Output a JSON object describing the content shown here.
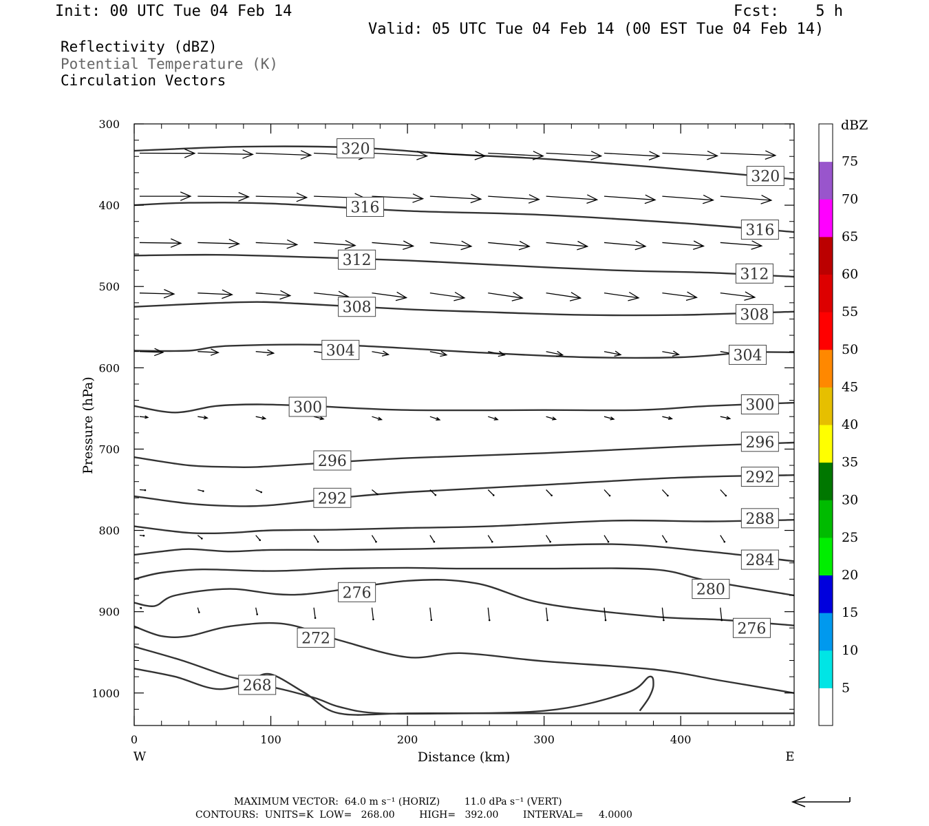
{
  "header": {
    "init": "Init: 00 UTC Tue 04 Feb 14",
    "fcst": "Fcst:    5 h",
    "valid": "Valid: 05 UTC Tue 04 Feb 14 (00 EST Tue 04 Feb 14)",
    "fields": [
      "Reflectivity (dBZ)",
      "Potential Temperature (K)",
      "Circulation Vectors"
    ]
  },
  "footer": {
    "line1": "MAXIMUM VECTOR:  64.0 m s⁻¹ (HORIZ)        11.0 dPa s⁻¹ (VERT)",
    "line2": "CONTOURS:  UNITS=K  LOW=   268.00        HIGH=   392.00        INTERVAL=     4.0000"
  },
  "colors": {
    "contour": "#333333",
    "colorbar": [
      "#ffffff",
      "#00e5e5",
      "#0099ee",
      "#0000dd",
      "#00ee00",
      "#00bb00",
      "#007700",
      "#ffff00",
      "#e6bf00",
      "#ff8800",
      "#ff0000",
      "#dd0000",
      "#bb0000",
      "#ff00ff",
      "#9955cc",
      "#ffffff"
    ]
  },
  "chart_data": {
    "type": "cross-section contour",
    "xlabel": "Distance (km)",
    "ylabel": "Pressure (hPa)",
    "xlim": [
      0,
      483
    ],
    "ylim": [
      300,
      1040
    ],
    "yscale": "linear, inverted",
    "x_ticks": [
      0,
      100,
      200,
      300,
      400
    ],
    "y_ticks": [
      300,
      400,
      500,
      600,
      700,
      800,
      900,
      1000
    ],
    "left_end_label": "W",
    "right_end_label": "E",
    "colorbar": {
      "title": "dBZ",
      "tick_labels": [
        "5",
        "10",
        "15",
        "20",
        "25",
        "30",
        "35",
        "40",
        "45",
        "50",
        "55",
        "60",
        "65",
        "70",
        "75"
      ]
    },
    "contours": [
      {
        "level": 320,
        "x": [
          0,
          80,
          160,
          230,
          300,
          380,
          483
        ],
        "p": [
          333,
          328,
          329,
          337,
          343,
          353,
          368
        ]
      },
      {
        "level": 316,
        "x": [
          0,
          40,
          100,
          200,
          300,
          400,
          483
        ],
        "p": [
          400,
          397,
          398,
          407,
          412,
          422,
          433
        ]
      },
      {
        "level": 312,
        "x": [
          0,
          60,
          130,
          200,
          260,
          350,
          420,
          483
        ],
        "p": [
          462,
          461,
          464,
          468,
          473,
          480,
          483,
          488
        ]
      },
      {
        "level": 308,
        "x": [
          0,
          50,
          90,
          120,
          200,
          250,
          330,
          400,
          483
        ],
        "p": [
          525,
          521,
          519,
          521,
          528,
          531,
          535,
          535,
          531
        ]
      },
      {
        "level": 304,
        "x": [
          0,
          40,
          70,
          150,
          250,
          330,
          400,
          450,
          483
        ],
        "p": [
          579,
          579,
          573,
          572,
          581,
          587,
          587,
          581,
          581
        ]
      },
      {
        "level": 300,
        "x": [
          0,
          30,
          60,
          90,
          130,
          200,
          300,
          370,
          420,
          483
        ],
        "p": [
          647,
          655,
          647,
          645,
          647,
          652,
          652,
          652,
          647,
          643
        ]
      },
      {
        "level": 296,
        "x": [
          0,
          40,
          70,
          90,
          130,
          200,
          300,
          400,
          483
        ],
        "p": [
          710,
          720,
          722,
          722,
          718,
          711,
          705,
          697,
          692
        ]
      },
      {
        "level": 292,
        "x": [
          0,
          40,
          70,
          100,
          150,
          200,
          300,
          400,
          483
        ],
        "p": [
          758,
          767,
          770,
          769,
          760,
          753,
          744,
          735,
          732
        ]
      },
      {
        "level": 288,
        "x": [
          0,
          40,
          70,
          100,
          150,
          200,
          260,
          350,
          420,
          483
        ],
        "p": [
          795,
          803,
          803,
          800,
          799,
          797,
          795,
          788,
          789,
          787
        ]
      },
      {
        "level": 284,
        "x": [
          0,
          20,
          40,
          70,
          100,
          150,
          200,
          260,
          350,
          420,
          483
        ],
        "p": [
          830,
          826,
          823,
          826,
          824,
          824,
          823,
          821,
          817,
          826,
          838
        ]
      },
      {
        "level": 280,
        "x": [
          0,
          20,
          50,
          100,
          150,
          200,
          240,
          300,
          380,
          420,
          483
        ],
        "p": [
          860,
          852,
          848,
          850,
          847,
          846,
          847,
          847,
          848,
          862,
          880
        ]
      },
      {
        "level": 276,
        "x": [
          0,
          15,
          30,
          70,
          120,
          200,
          250,
          300,
          380,
          430,
          483
        ],
        "p": [
          889,
          893,
          880,
          872,
          879,
          862,
          865,
          890,
          906,
          910,
          917
        ]
      },
      {
        "level": 272,
        "x": [
          0,
          20,
          40,
          70,
          110,
          150,
          200,
          240,
          300,
          380,
          430,
          483
        ],
        "p": [
          918,
          930,
          930,
          918,
          915,
          935,
          956,
          951,
          961,
          971,
          985,
          1000
        ]
      },
      {
        "level": 268,
        "x": [
          0,
          35,
          70,
          85,
          100,
          125,
          150,
          200,
          300,
          360,
          377,
          380,
          377,
          370
        ],
        "p": [
          943,
          960,
          980,
          983,
          977,
          1000,
          1025,
          1025,
          1022,
          1000,
          980,
          990,
          1005,
          1022
        ]
      },
      {
        "level": 268,
        "x": [
          0,
          30,
          60,
          90,
          130,
          150,
          180,
          250,
          330,
          400,
          483
        ],
        "p": [
          970,
          980,
          995,
          990,
          1005,
          1017,
          1025,
          1025,
          1025,
          1025,
          1025
        ]
      }
    ],
    "contour_labels": [
      {
        "text": "320",
        "x": 162,
        "p": 330
      },
      {
        "text": "320",
        "x": 462,
        "p": 364
      },
      {
        "text": "316",
        "x": 169,
        "p": 402
      },
      {
        "text": "316",
        "x": 458,
        "p": 430
      },
      {
        "text": "312",
        "x": 163,
        "p": 467
      },
      {
        "text": "312",
        "x": 454,
        "p": 484
      },
      {
        "text": "308",
        "x": 163,
        "p": 525
      },
      {
        "text": "308",
        "x": 454,
        "p": 534
      },
      {
        "text": "304",
        "x": 151,
        "p": 578
      },
      {
        "text": "304",
        "x": 449,
        "p": 584
      },
      {
        "text": "300",
        "x": 127,
        "p": 648
      },
      {
        "text": "300",
        "x": 458,
        "p": 645
      },
      {
        "text": "296",
        "x": 145,
        "p": 714
      },
      {
        "text": "296",
        "x": 458,
        "p": 691
      },
      {
        "text": "292",
        "x": 145,
        "p": 760
      },
      {
        "text": "292",
        "x": 458,
        "p": 734
      },
      {
        "text": "288",
        "x": 458,
        "p": 785
      },
      {
        "text": "284",
        "x": 458,
        "p": 836
      },
      {
        "text": "280",
        "x": 422,
        "p": 872
      },
      {
        "text": "276",
        "x": 163,
        "p": 876
      },
      {
        "text": "276",
        "x": 452,
        "p": 920
      },
      {
        "text": "272",
        "x": 133,
        "p": 932
      },
      {
        "text": "268",
        "x": 90,
        "p": 990
      }
    ],
    "vectors": [
      {
        "p": 336,
        "y_end": [
          337,
          342,
          346,
          349,
          350,
          350,
          350,
          350,
          351,
          349,
          347
        ],
        "dx": [
          40,
          40,
          40,
          40,
          40,
          40,
          40,
          40,
          40,
          40,
          40
        ]
      },
      {
        "p": 389,
        "y_end": [
          389,
          392,
          395,
          398,
          401,
          403,
          405,
          406,
          407,
          408,
          409
        ],
        "dx": [
          37,
          37,
          37,
          37,
          37,
          37,
          37,
          37,
          37,
          37,
          37
        ]
      },
      {
        "p": 446,
        "y_end": [
          449,
          452,
          456,
          460,
          463,
          464,
          465,
          465,
          464,
          463,
          462
        ],
        "dx": [
          30,
          30,
          30,
          30,
          30,
          30,
          30,
          30,
          30,
          30,
          30
        ]
      },
      {
        "p": 508,
        "y_end": [
          513,
          516,
          521,
          526,
          531,
          532,
          533,
          533,
          532,
          530,
          529
        ],
        "dx": [
          25,
          25,
          25,
          25,
          25,
          25,
          25,
          25,
          25,
          25,
          25
        ]
      },
      {
        "p": 580,
        "y_end": [
          584,
          585,
          588,
          591,
          595,
          597,
          597,
          597,
          596,
          595,
          594
        ],
        "dx": [
          17,
          15,
          13,
          13,
          12,
          12,
          12,
          12,
          12,
          12,
          12
        ]
      },
      {
        "p": 660,
        "y_end": [
          664,
          667,
          670,
          672,
          675,
          676,
          675,
          674,
          673,
          671,
          670
        ],
        "dx": [
          6,
          7,
          7,
          7,
          7,
          7,
          7,
          7,
          7,
          7,
          7
        ]
      },
      {
        "p": 750,
        "y_end": [
          752,
          757,
          762,
          767,
          772,
          776,
          777,
          778,
          779,
          779,
          779
        ],
        "dx": [
          4,
          4,
          4,
          4,
          4,
          4,
          4,
          4,
          4,
          4,
          4
        ]
      },
      {
        "p": 806,
        "y_end": [
          808,
          822,
          830,
          838,
          838,
          838,
          838,
          838,
          838,
          838,
          838
        ],
        "dx": [
          3,
          3,
          3,
          3,
          3,
          3,
          3,
          3,
          3,
          3,
          3
        ]
      },
      {
        "p": 895,
        "y_end": [
          897,
          918,
          928,
          946,
          953,
          956,
          957,
          957,
          957,
          957,
          957
        ],
        "dx": [
          1,
          1,
          1,
          1,
          1,
          1,
          1,
          1,
          1,
          1,
          1
        ]
      }
    ]
  }
}
